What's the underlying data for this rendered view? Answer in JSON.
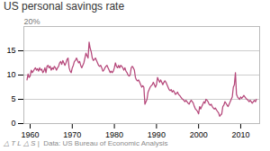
{
  "chart_data": {
    "type": "line",
    "title": "US personal savings rate",
    "annotations": [
      "20%",
      "△ T L △ S",
      "|  Data: US Bureau of Economic Analysis"
    ],
    "color": "#b5477a",
    "xlim": [
      1958.5,
      2014.5
    ],
    "ylim": [
      0,
      20
    ],
    "xticks": [
      1960,
      1970,
      1980,
      1990,
      2000,
      2010
    ],
    "yticks": [
      0,
      5,
      10,
      15
    ],
    "grid": true,
    "x": [
      1959.25,
      1959.5,
      1959.75,
      1960.0,
      1960.25,
      1960.5,
      1960.75,
      1961.0,
      1961.25,
      1961.5,
      1961.75,
      1962.0,
      1962.25,
      1962.5,
      1962.75,
      1963.0,
      1963.25,
      1963.5,
      1963.75,
      1964.0,
      1964.25,
      1964.5,
      1964.75,
      1965.0,
      1965.25,
      1965.5,
      1965.75,
      1966.0,
      1966.25,
      1966.5,
      1966.75,
      1967.0,
      1967.25,
      1967.5,
      1967.75,
      1968.0,
      1968.25,
      1968.5,
      1968.75,
      1969.0,
      1969.25,
      1969.5,
      1969.75,
      1970.0,
      1970.25,
      1970.5,
      1970.75,
      1971.0,
      1971.25,
      1971.5,
      1971.75,
      1972.0,
      1972.25,
      1972.5,
      1972.75,
      1973.0,
      1973.25,
      1973.5,
      1973.75,
      1974.0,
      1974.25,
      1974.5,
      1974.75,
      1975.0,
      1975.25,
      1975.5,
      1975.75,
      1976.0,
      1976.25,
      1976.5,
      1976.75,
      1977.0,
      1977.25,
      1977.5,
      1977.75,
      1978.0,
      1978.25,
      1978.5,
      1978.75,
      1979.0,
      1979.25,
      1979.5,
      1979.75,
      1980.0,
      1980.25,
      1980.5,
      1980.75,
      1981.0,
      1981.25,
      1981.5,
      1981.75,
      1982.0,
      1982.25,
      1982.5,
      1982.75,
      1983.0,
      1983.25,
      1983.5,
      1983.75,
      1984.0,
      1984.25,
      1984.5,
      1984.75,
      1985.0,
      1985.25,
      1985.5,
      1985.75,
      1986.0,
      1986.25,
      1986.5,
      1986.75,
      1987.0,
      1987.25,
      1987.5,
      1987.75,
      1988.0,
      1988.25,
      1988.5,
      1988.75,
      1989.0,
      1989.25,
      1989.5,
      1989.75,
      1990.0,
      1990.25,
      1990.5,
      1990.75,
      1991.0,
      1991.25,
      1991.5,
      1991.75,
      1992.0,
      1992.25,
      1992.5,
      1992.75,
      1993.0,
      1993.25,
      1993.5,
      1993.75,
      1994.0,
      1994.25,
      1994.5,
      1994.75,
      1995.0,
      1995.25,
      1995.5,
      1995.75,
      1996.0,
      1996.25,
      1996.5,
      1996.75,
      1997.0,
      1997.25,
      1997.5,
      1997.75,
      1998.0,
      1998.25,
      1998.5,
      1998.75,
      1999.0,
      1999.25,
      1999.5,
      1999.75,
      2000.0,
      2000.25,
      2000.5,
      2000.75,
      2001.0,
      2001.25,
      2001.5,
      2001.75,
      2002.0,
      2002.25,
      2002.5,
      2002.75,
      2003.0,
      2003.25,
      2003.5,
      2003.75,
      2004.0,
      2004.25,
      2004.5,
      2004.75,
      2005.0,
      2005.25,
      2005.5,
      2005.75,
      2006.0,
      2006.25,
      2006.5,
      2006.75,
      2007.0,
      2007.25,
      2007.5,
      2007.75,
      2008.0,
      2008.25,
      2008.5,
      2008.75,
      2009.0,
      2009.25,
      2009.5,
      2009.75,
      2010.0,
      2010.25,
      2010.5,
      2010.75,
      2011.0,
      2011.25,
      2011.5,
      2011.75,
      2012.0,
      2012.25,
      2012.5,
      2012.75,
      2013.0,
      2013.25,
      2013.5,
      2013.75
    ],
    "values": [
      9.0,
      10.2,
      9.5,
      9.8,
      11.0,
      10.5,
      10.8,
      11.2,
      11.5,
      11.0,
      11.3,
      10.8,
      11.5,
      11.0,
      11.2,
      10.5,
      10.8,
      11.5,
      10.5,
      11.8,
      12.0,
      11.5,
      11.8,
      11.0,
      11.5,
      11.2,
      11.8,
      11.5,
      11.0,
      11.5,
      11.8,
      12.5,
      12.8,
      12.2,
      13.0,
      12.5,
      12.0,
      12.5,
      13.2,
      13.5,
      11.5,
      10.8,
      10.5,
      11.5,
      12.0,
      12.8,
      13.0,
      13.5,
      13.0,
      12.5,
      12.8,
      12.0,
      11.5,
      12.0,
      12.5,
      13.5,
      14.5,
      14.0,
      13.5,
      16.8,
      15.5,
      14.8,
      13.5,
      13.0,
      13.2,
      13.5,
      13.0,
      12.5,
      12.0,
      11.8,
      12.0,
      11.5,
      10.8,
      11.0,
      11.5,
      11.8,
      12.0,
      11.5,
      11.0,
      10.5,
      10.8,
      10.5,
      10.8,
      11.5,
      12.5,
      11.8,
      11.5,
      12.0,
      11.5,
      12.0,
      11.8,
      11.5,
      11.0,
      11.5,
      10.8,
      10.5,
      10.0,
      9.8,
      10.0,
      11.5,
      11.8,
      11.5,
      11.0,
      9.5,
      9.0,
      8.8,
      9.0,
      8.5,
      8.0,
      7.5,
      7.8,
      7.5,
      4.0,
      4.5,
      5.0,
      6.5,
      7.0,
      7.5,
      7.8,
      8.0,
      8.5,
      8.0,
      7.5,
      8.0,
      9.5,
      9.0,
      8.5,
      9.0,
      8.5,
      8.0,
      8.5,
      8.8,
      8.5,
      8.0,
      7.5,
      7.0,
      6.8,
      7.0,
      6.5,
      6.8,
      6.5,
      6.0,
      6.2,
      6.5,
      6.0,
      5.8,
      5.5,
      5.2,
      5.0,
      4.8,
      4.5,
      4.8,
      4.5,
      4.2,
      4.0,
      4.5,
      4.8,
      4.5,
      4.2,
      3.5,
      3.0,
      2.8,
      2.5,
      2.0,
      3.5,
      3.0,
      3.5,
      4.0,
      4.5,
      4.2,
      5.0,
      4.8,
      4.5,
      4.0,
      3.8,
      4.0,
      3.5,
      3.2,
      3.0,
      3.2,
      2.8,
      2.5,
      2.2,
      1.5,
      1.8,
      2.0,
      3.5,
      3.8,
      4.5,
      4.2,
      3.8,
      3.5,
      4.0,
      4.5,
      5.0,
      5.5,
      7.5,
      8.0,
      10.5,
      6.0,
      5.5,
      5.2,
      5.0,
      5.5,
      5.2,
      5.5,
      5.8,
      5.5,
      5.2,
      5.0,
      4.8,
      4.5,
      4.8,
      4.5,
      4.2,
      4.5,
      4.8,
      4.5,
      5.0
    ]
  }
}
